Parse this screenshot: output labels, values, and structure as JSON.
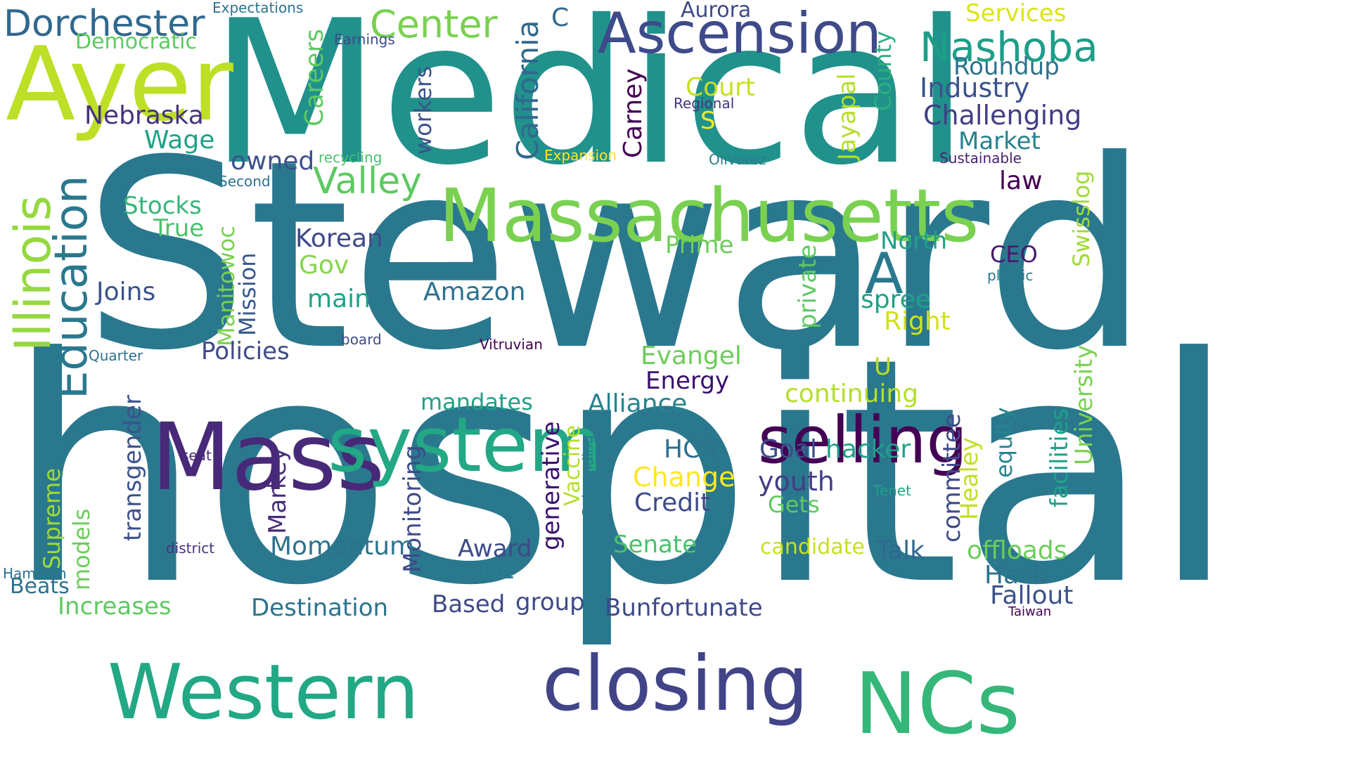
{
  "cloud": {
    "words": [
      {
        "text": "Steward",
        "color": "#2a788e"
      },
      {
        "text": "hospital",
        "color": "#2a788e"
      },
      {
        "text": "Medical",
        "color": "#21918c"
      },
      {
        "text": "Massachusetts",
        "color": "#7ad151"
      },
      {
        "text": "Ayer",
        "color": "#bddf26"
      },
      {
        "text": "Mass",
        "color": "#482878"
      },
      {
        "text": "system",
        "color": "#22a884"
      },
      {
        "text": "Western",
        "color": "#22a884"
      },
      {
        "text": "closing",
        "color": "#414487"
      },
      {
        "text": "NCs",
        "color": "#35b779"
      },
      {
        "text": "selling",
        "color": "#440154"
      },
      {
        "text": "Ascension",
        "color": "#3e4a89"
      },
      {
        "text": "Nashoba",
        "color": "#1f9e89"
      },
      {
        "text": "Dorchester",
        "color": "#31688e"
      },
      {
        "text": "Center",
        "color": "#7ad151"
      },
      {
        "text": "AI",
        "color": "#2a788e"
      },
      {
        "text": "Illinois",
        "color": "#95d840"
      },
      {
        "text": "Education",
        "color": "#2a788e"
      },
      {
        "text": "Valley",
        "color": "#5ec962"
      },
      {
        "text": "California",
        "color": "#31688e"
      },
      {
        "text": "Careers",
        "color": "#5ec962"
      },
      {
        "text": "Services",
        "color": "#dde318"
      },
      {
        "text": "Roundup",
        "color": "#2c728e"
      },
      {
        "text": "Industry",
        "color": "#3b528b"
      },
      {
        "text": "Challenging",
        "color": "#433e85"
      },
      {
        "text": "Market",
        "color": "#26828e"
      },
      {
        "text": "Nebraska",
        "color": "#46327e"
      },
      {
        "text": "Wage",
        "color": "#1fa187"
      },
      {
        "text": "owned",
        "color": "#3b528b"
      },
      {
        "text": "workers",
        "color": "#3b528b"
      },
      {
        "text": "Court",
        "color": "#c8e020"
      },
      {
        "text": "Carney",
        "color": "#440154"
      },
      {
        "text": "Jayapal",
        "color": "#b5de2b"
      },
      {
        "text": "County",
        "color": "#29af7f"
      },
      {
        "text": "Aurora",
        "color": "#3e4a89"
      },
      {
        "text": "Democratic",
        "color": "#5ec962"
      },
      {
        "text": "Expectations",
        "color": "#2c728e"
      },
      {
        "text": "Earnings",
        "color": "#3e4a89"
      },
      {
        "text": "Regional",
        "color": "#46327e"
      },
      {
        "text": "S",
        "color": "#fde725"
      },
      {
        "text": "C",
        "color": "#31688e"
      },
      {
        "text": "recycling",
        "color": "#4ac16d"
      },
      {
        "text": "Expansion",
        "color": "#fde725"
      },
      {
        "text": "Olivarez",
        "color": "#277f8e"
      },
      {
        "text": "Sustainable",
        "color": "#482173"
      },
      {
        "text": "law",
        "color": "#440154"
      },
      {
        "text": "Swisslog",
        "color": "#a0da39"
      },
      {
        "text": "Second",
        "color": "#2c728e"
      },
      {
        "text": "Stocks",
        "color": "#35b779"
      },
      {
        "text": "True",
        "color": "#4ac16d"
      },
      {
        "text": "Manitowoc",
        "color": "#7ad151"
      },
      {
        "text": "Mission",
        "color": "#38588c"
      },
      {
        "text": "Korean",
        "color": "#3e4a89"
      },
      {
        "text": "Gov",
        "color": "#86d549"
      },
      {
        "text": "main",
        "color": "#1fa187"
      },
      {
        "text": "Joins",
        "color": "#3b528b"
      },
      {
        "text": "Amazon",
        "color": "#2c728e"
      },
      {
        "text": "Prime",
        "color": "#6ccd5a"
      },
      {
        "text": "private",
        "color": "#5ec962"
      },
      {
        "text": "North",
        "color": "#1fa187"
      },
      {
        "text": "spree",
        "color": "#1fa187"
      },
      {
        "text": "Right",
        "color": "#d2e21b"
      },
      {
        "text": "CEO",
        "color": "#481a6c"
      },
      {
        "text": "plastic",
        "color": "#287c8e"
      },
      {
        "text": "University",
        "color": "#7ad151"
      },
      {
        "text": "Policies",
        "color": "#3e4a89"
      },
      {
        "text": "board",
        "color": "#3e4a89"
      },
      {
        "text": "Vitruvian",
        "color": "#440154"
      },
      {
        "text": "Quarter",
        "color": "#2c728e"
      },
      {
        "text": "Evangel",
        "color": "#6ccd5a"
      },
      {
        "text": "Energy",
        "color": "#3b0f70"
      },
      {
        "text": "U",
        "color": "#b5de2b"
      },
      {
        "text": "continuing",
        "color": "#b5de2b"
      },
      {
        "text": "mandates",
        "color": "#1fa187"
      },
      {
        "text": "Alliance",
        "color": "#25848e"
      },
      {
        "text": "equity",
        "color": "#25848e"
      },
      {
        "text": "facilities",
        "color": "#1fa187"
      },
      {
        "text": "transgender",
        "color": "#3b528b"
      },
      {
        "text": "seat",
        "color": "#482878"
      },
      {
        "text": "Markey",
        "color": "#472d7b"
      },
      {
        "text": "Monitoring",
        "color": "#3e4a89"
      },
      {
        "text": "generative",
        "color": "#3b0f70"
      },
      {
        "text": "Vaccine",
        "color": "#b5de2b"
      },
      {
        "text": "Rebranding",
        "color": "#2a788e"
      },
      {
        "text": "HCA",
        "color": "#2c728e"
      },
      {
        "text": "Goal",
        "color": "#3e4a89"
      },
      {
        "text": "hacker",
        "color": "#1fa187"
      },
      {
        "text": "committee",
        "color": "#3e4a89"
      },
      {
        "text": "Healey",
        "color": "#c2df23"
      },
      {
        "text": "Change",
        "color": "#fde725"
      },
      {
        "text": "youth",
        "color": "#433e85"
      },
      {
        "text": "Tenet",
        "color": "#20a386"
      },
      {
        "text": "Credit",
        "color": "#3e4a89"
      },
      {
        "text": "Gets",
        "color": "#5ec962"
      },
      {
        "text": "Supreme",
        "color": "#a0da39"
      },
      {
        "text": "models",
        "color": "#6ccd5a"
      },
      {
        "text": "district",
        "color": "#46327e"
      },
      {
        "text": "Momentum",
        "color": "#2c728e"
      },
      {
        "text": "Award",
        "color": "#3e4a89"
      },
      {
        "text": "GE",
        "color": "#287c8e"
      },
      {
        "text": "Senate",
        "color": "#4ac16d"
      },
      {
        "text": "candidate",
        "color": "#c8e020"
      },
      {
        "text": "Talk",
        "color": "#31688e"
      },
      {
        "text": "offloads",
        "color": "#6ccd5a"
      },
      {
        "text": "Hack",
        "color": "#2c728e"
      },
      {
        "text": "Fallout",
        "color": "#3b528b"
      },
      {
        "text": "Taiwan",
        "color": "#440154"
      },
      {
        "text": "Hamilton",
        "color": "#2c728e"
      },
      {
        "text": "Beats",
        "color": "#2c728e"
      },
      {
        "text": "Increases",
        "color": "#5ec962"
      },
      {
        "text": "Destination",
        "color": "#2c728e"
      },
      {
        "text": "Based",
        "color": "#3e4a89"
      },
      {
        "text": "group",
        "color": "#3e4a89"
      },
      {
        "text": "Bunfortunate",
        "color": "#3e4a89"
      }
    ]
  }
}
